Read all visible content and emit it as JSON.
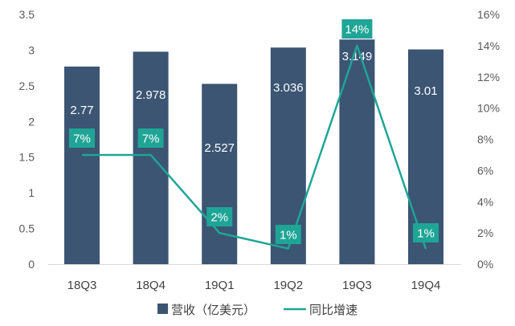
{
  "chart_data": {
    "type": "bar",
    "categories": [
      "18Q3",
      "18Q4",
      "19Q1",
      "19Q2",
      "19Q3",
      "19Q4"
    ],
    "series": [
      {
        "name": "营收（亿美元）",
        "type": "bar",
        "axis": "left",
        "values": [
          2.77,
          2.978,
          2.527,
          3.036,
          3.149,
          3.01
        ],
        "labels": [
          "2.77",
          "2.978",
          "2.527",
          "3.036",
          "3.149",
          "3.01"
        ],
        "color": "#3b5573"
      },
      {
        "name": "同比增速",
        "type": "line",
        "axis": "right",
        "values": [
          7,
          7,
          2,
          1,
          14,
          1
        ],
        "labels": [
          "7%",
          "7%",
          "2%",
          "1%",
          "14%",
          "1%"
        ],
        "color": "#1fa596"
      }
    ],
    "left_axis": {
      "ylim": [
        0,
        3.5
      ],
      "ticks": [
        0,
        0.5,
        1,
        1.5,
        2,
        2.5,
        3,
        3.5
      ],
      "tick_labels": [
        "0",
        "0.5",
        "1",
        "1.5",
        "2",
        "2.5",
        "3",
        "3.5"
      ]
    },
    "right_axis": {
      "ylim": [
        0,
        16
      ],
      "ticks": [
        0,
        2,
        4,
        6,
        8,
        10,
        12,
        14,
        16
      ],
      "tick_labels": [
        "0%",
        "2%",
        "4%",
        "6%",
        "8%",
        "10%",
        "12%",
        "14%",
        "16%"
      ]
    },
    "grid": false,
    "legend": {
      "placement": "bottom",
      "entries": [
        "营收（亿美元）",
        "同比增速"
      ]
    }
  }
}
